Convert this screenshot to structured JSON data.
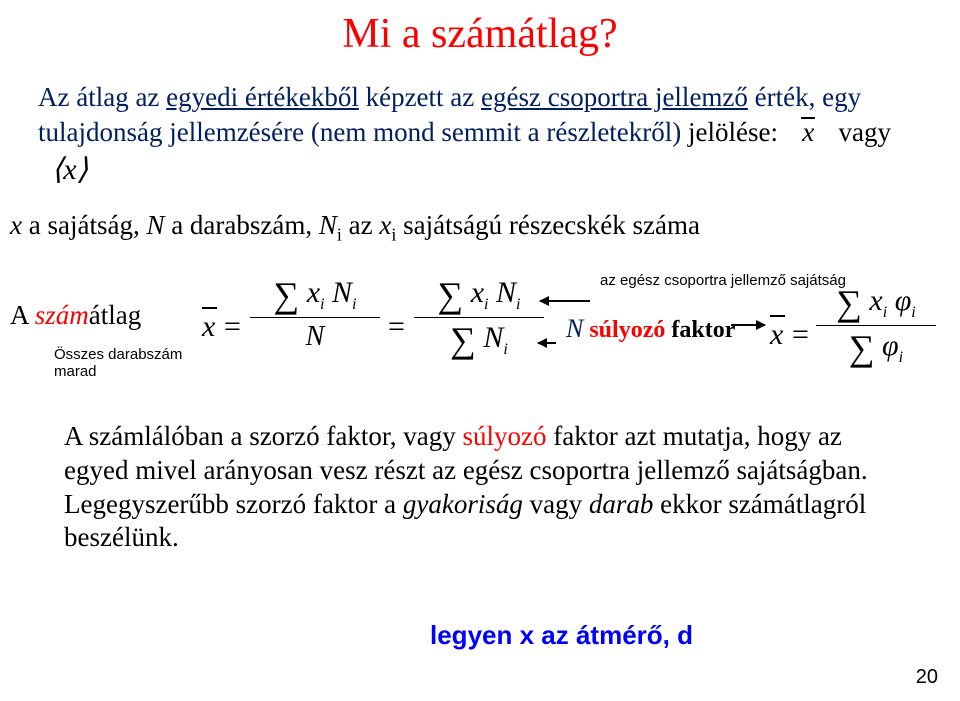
{
  "title": "Mi a számátlag?",
  "intro": {
    "part1": "Az átlag az ",
    "u1": "egyedi értékekből",
    "part2": " képzett az ",
    "u2": "egész csoportra jellemző",
    "part3": " érték, egy tulajdonság jellemzésére (nem mond semmit a részletekről) ",
    "jelolese": "jelölése:",
    "vagy": "vagy"
  },
  "defline": {
    "x": "x",
    "a1": " a sajátság, ",
    "N": "N",
    "a2": " a darabszám, ",
    "Ni": "N",
    "a3": " az ",
    "xi": "x",
    "a4": " sajátságú részecskék száma"
  },
  "szamatlag": {
    "prefix": "A ",
    "szam": "szám",
    "suffix": "átlag"
  },
  "annot_left_l1": "Összes darabszám",
  "annot_left_l2": "marad",
  "annot_mid": "az egész csoportra jellemző sajátság",
  "annot_n": {
    "N": "N",
    "sul": " súlyozó",
    "faktor": " faktor"
  },
  "eq": {
    "x": "x",
    "equals": "=",
    "sigma": "∑",
    "N_big": "N",
    "i": "i",
    "phi": "φ"
  },
  "explain": {
    "p1": "A számlálóban a szorzó faktor, vagy ",
    "red": "súlyozó",
    "p2": " faktor azt mutatja, hogy az egyed mivel arányosan vesz részt az egész csoportra jellemző sajátságban. Legegyszerűbb szorzó faktor a ",
    "it1": "gyakoriság",
    "nl": " vagy ",
    "it2": "darab",
    "p3": " ekkor számátlagról beszélünk."
  },
  "legyen": "legyen x az átmérő, d",
  "pagenum": "20",
  "colors": {
    "title": "#ff0000",
    "intro": "#002060",
    "red": "#ff0000",
    "blue": "#0000ff",
    "black": "#000000",
    "bg": "#ffffff"
  }
}
